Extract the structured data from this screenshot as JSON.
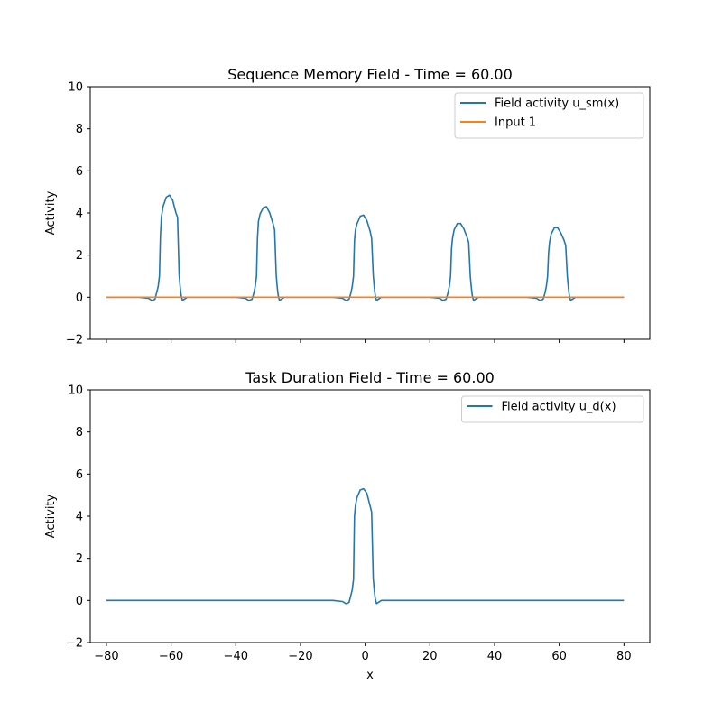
{
  "chart_data": [
    {
      "type": "line",
      "title": "Sequence Memory Field - Time = 60.00",
      "xlabel": "",
      "ylabel": "Activity",
      "xlim": [
        -85,
        88
      ],
      "ylim": [
        -2,
        10
      ],
      "xticks": [
        -80,
        -60,
        -40,
        -20,
        0,
        20,
        40,
        60,
        80
      ],
      "xtick_labels_visible": false,
      "yticks": [
        -2,
        0,
        2,
        4,
        6,
        8,
        10
      ],
      "legend_position": "top-right",
      "series": [
        {
          "name": "Field activity u_sm(x)",
          "color": "#1f77b4",
          "x": [
            -80,
            -70,
            -67,
            -66,
            -65,
            -64.5,
            -64,
            -63.6,
            -63.3,
            -63,
            -62.5,
            -61.5,
            -60.5,
            -59.5,
            -58.5,
            -58,
            -57.5,
            -57.2,
            -56.9,
            -56.5,
            -56,
            -55,
            -54,
            -52,
            -40,
            -37,
            -36,
            -35,
            -34.5,
            -34,
            -33.6,
            -33.3,
            -33,
            -32.5,
            -31.5,
            -30.5,
            -29.5,
            -28.5,
            -28,
            -27.5,
            -27.2,
            -26.9,
            -26.5,
            -26,
            -25,
            -24,
            -22,
            -10,
            -7,
            -6,
            -5,
            -4.5,
            -4,
            -3.6,
            -3.3,
            -3,
            -2.5,
            -1.5,
            -0.5,
            0.5,
            1.5,
            2,
            2.5,
            2.8,
            3.1,
            3.5,
            4,
            5,
            6,
            8,
            20,
            23,
            24,
            25,
            25.5,
            26,
            26.4,
            26.7,
            27,
            27.5,
            28.5,
            29.5,
            30.5,
            31.5,
            32,
            32.5,
            32.8,
            33.1,
            33.5,
            34,
            35,
            36,
            38,
            50,
            53,
            54,
            55,
            55.5,
            56,
            56.4,
            56.7,
            57,
            57.5,
            58.5,
            59.5,
            60.5,
            61.5,
            62,
            62.5,
            62.8,
            63.1,
            63.5,
            64,
            65,
            66,
            68,
            80
          ],
          "y": [
            0,
            0,
            -0.05,
            -0.15,
            -0.1,
            0.2,
            0.5,
            1.0,
            2.9,
            3.8,
            4.3,
            4.75,
            4.85,
            4.6,
            4.0,
            3.8,
            1.05,
            0.5,
            0.1,
            -0.15,
            -0.1,
            0,
            0,
            0,
            0,
            -0.05,
            -0.15,
            -0.1,
            0.15,
            0.5,
            1.0,
            2.8,
            3.6,
            3.95,
            4.25,
            4.3,
            4.0,
            3.5,
            3.2,
            1.05,
            0.5,
            0.1,
            -0.15,
            -0.1,
            0,
            0,
            0,
            0,
            -0.05,
            -0.15,
            -0.1,
            0.15,
            0.5,
            1.0,
            2.7,
            3.2,
            3.5,
            3.85,
            3.9,
            3.65,
            3.15,
            2.8,
            1.05,
            0.5,
            0.1,
            -0.15,
            -0.1,
            0,
            0,
            0,
            0,
            -0.05,
            -0.15,
            -0.1,
            0.15,
            0.5,
            1.0,
            2.3,
            2.8,
            3.2,
            3.5,
            3.5,
            3.25,
            2.85,
            2.6,
            1.0,
            0.5,
            0.1,
            -0.15,
            -0.1,
            0,
            0,
            0,
            0,
            -0.05,
            -0.15,
            -0.1,
            0.15,
            0.5,
            1.0,
            2.1,
            2.6,
            3.0,
            3.3,
            3.3,
            3.05,
            2.7,
            2.45,
            1.0,
            0.5,
            0.1,
            -0.15,
            -0.1,
            0,
            0,
            0,
            0
          ]
        },
        {
          "name": "Input 1",
          "color": "#ff7f0e",
          "x": [
            -80,
            80
          ],
          "y": [
            0,
            0
          ]
        }
      ]
    },
    {
      "type": "line",
      "title": "Task Duration Field - Time = 60.00",
      "xlabel": "x",
      "ylabel": "Activity",
      "xlim": [
        -85,
        88
      ],
      "ylim": [
        -2,
        10
      ],
      "xticks": [
        -80,
        -60,
        -40,
        -20,
        0,
        20,
        40,
        60,
        80
      ],
      "xtick_labels_visible": true,
      "yticks": [
        -2,
        0,
        2,
        4,
        6,
        8,
        10
      ],
      "legend_position": "top-right",
      "series": [
        {
          "name": "Field activity u_d(x)",
          "color": "#1f77b4",
          "x": [
            -80,
            -10,
            -7,
            -6,
            -5,
            -4.5,
            -4,
            -3.6,
            -3.3,
            -3,
            -2.5,
            -1.5,
            -0.5,
            0.5,
            1.5,
            2,
            2.5,
            2.8,
            3.1,
            3.5,
            4,
            5,
            6,
            8,
            80
          ],
          "y": [
            0,
            0,
            -0.05,
            -0.15,
            -0.1,
            0.2,
            0.5,
            1.0,
            4.0,
            4.5,
            4.9,
            5.25,
            5.3,
            5.1,
            4.5,
            4.2,
            1.05,
            0.5,
            0.1,
            -0.15,
            -0.1,
            0,
            0,
            0,
            0
          ]
        }
      ]
    }
  ]
}
